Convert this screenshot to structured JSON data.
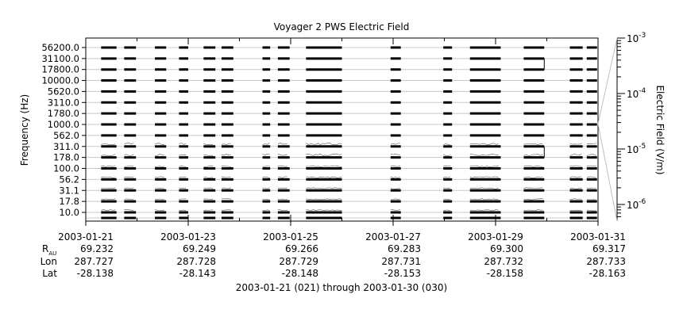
{
  "chart_data": {
    "type": "line",
    "title": "Voyager 2 PWS Electric Field",
    "ylabel": "Frequency (Hz)",
    "y2label": "Electric Field (V/m)",
    "channels": [
      "10.0",
      "17.8",
      "31.1",
      "56.2",
      "100.0",
      "178.0",
      "311.0",
      "562.0",
      "1000.0",
      "1780.0",
      "3110.0",
      "5620.0",
      "10000.0",
      "17800.0",
      "31100.0",
      "56200.0"
    ],
    "y2_range": [
      "1e-6.3",
      "1e-3"
    ],
    "y2_ticks": [
      {
        "base": "10",
        "exp": "-3"
      },
      {
        "base": "10",
        "exp": "-4"
      },
      {
        "base": "10",
        "exp": "-5"
      },
      {
        "base": "10",
        "exp": "-6"
      }
    ],
    "x_range": [
      "2003-01-21",
      "2003-01-31"
    ],
    "x_ticks": [
      "2003-01-21",
      "2003-01-23",
      "2003-01-25",
      "2003-01-27",
      "2003-01-29",
      "2003-01-31"
    ],
    "data_intervals_days": [
      [
        0.3,
        0.6
      ],
      [
        0.75,
        0.98
      ],
      [
        1.35,
        1.57
      ],
      [
        1.82,
        2.0
      ],
      [
        2.3,
        2.53
      ],
      [
        2.65,
        2.88
      ],
      [
        3.45,
        3.6
      ],
      [
        3.75,
        3.98
      ],
      [
        4.3,
        5.0
      ],
      [
        5.95,
        6.15
      ],
      [
        6.98,
        7.15
      ],
      [
        7.5,
        8.1
      ],
      [
        8.55,
        8.95
      ],
      [
        9.45,
        9.7
      ],
      [
        9.78,
        9.98
      ]
    ],
    "ephemeris": {
      "labels": [
        "R",
        "AU",
        "Lon",
        "Lat"
      ],
      "columns": [
        {
          "R": "69.232",
          "Lon": "287.727",
          "Lat": "-28.138"
        },
        {
          "R": "69.249",
          "Lon": "287.728",
          "Lat": "-28.143"
        },
        {
          "R": "69.266",
          "Lon": "287.729",
          "Lat": "-28.148"
        },
        {
          "R": "69.283",
          "Lon": "287.731",
          "Lat": "-28.153"
        },
        {
          "R": "69.300",
          "Lon": "287.732",
          "Lat": "-28.158"
        },
        {
          "R": "69.317",
          "Lon": "287.733",
          "Lat": "-28.163"
        }
      ]
    },
    "date_range_caption": "2003-01-21 (021) through 2003-01-30 (030)",
    "grid": true,
    "colors": {
      "axis": "#000000",
      "grid": "#c8c8c8",
      "trace": "#000000"
    }
  }
}
